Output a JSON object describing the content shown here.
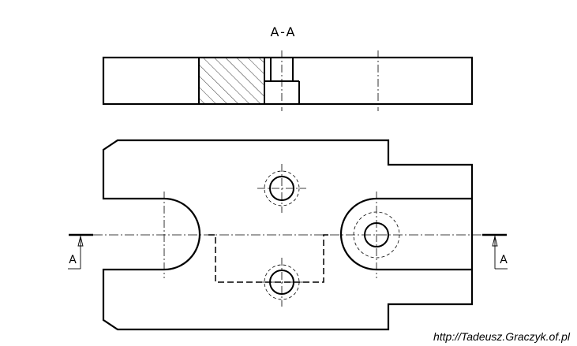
{
  "section_title": "A-A",
  "cut_label_left": "A",
  "cut_label_right": "A",
  "credit": "http://Tadeusz.Graczyk.of.pl",
  "colors": {
    "line": "#000000",
    "background": "#ffffff"
  }
}
